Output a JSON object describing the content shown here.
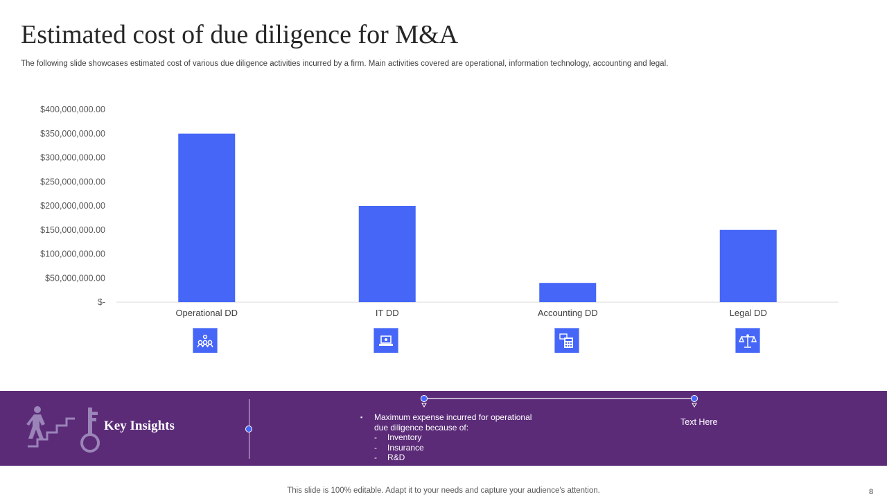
{
  "slide": {
    "title": "Estimated cost of due diligence for M&A",
    "subtitle": "The following slide showcases estimated cost of various due diligence activities incurred by a firm. Main activities covered are operational, information technology, accounting and legal.",
    "footer": "This slide is 100% editable. Adapt it to your needs and capture your audience's attention.",
    "page_number": "8"
  },
  "colors": {
    "bar": "#4566f7",
    "band": "#5b2b78",
    "axis": "#d9d9d9"
  },
  "chart_data": {
    "type": "bar",
    "title": "",
    "xlabel": "",
    "ylabel": "",
    "categories": [
      "Operational DD",
      "IT DD",
      "Accounting DD",
      "Legal DD"
    ],
    "values": [
      350000000,
      200000000,
      40000000,
      150000000
    ],
    "ylim": [
      0,
      400000000
    ],
    "yticks": [
      0,
      50000000,
      100000000,
      150000000,
      200000000,
      250000000,
      300000000,
      350000000,
      400000000
    ],
    "ytick_labels": [
      "$-",
      "$50,000,000.00",
      "$100,000,000.00",
      "$150,000,000.00",
      "$200,000,000.00",
      "$250,000,000.00",
      "$300,000,000.00",
      "$350,000,000.00",
      "$400,000,000.00"
    ],
    "grid": false,
    "legend": "none"
  },
  "category_icons": [
    "team-gears-icon",
    "laptop-icon",
    "calculator-icon",
    "scales-icon"
  ],
  "insights": {
    "title": "Key Insights",
    "bullet": "▪",
    "point": "Maximum expense incurred for operational due diligence because of:",
    "dash": "-",
    "sub_items": [
      "Inventory",
      "Insurance",
      "R&D"
    ],
    "text_here": "Text Here"
  }
}
